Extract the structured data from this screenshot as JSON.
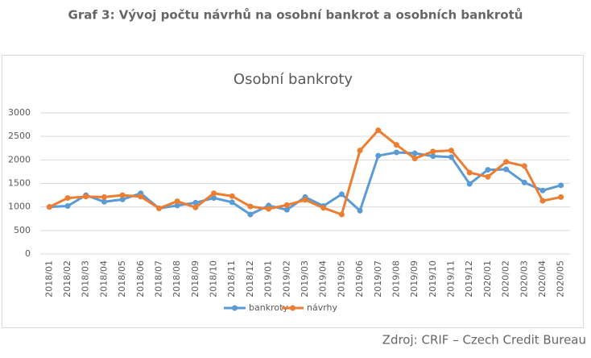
{
  "header": {
    "title": "Graf 3: Vývoj počtu návrhů na osobní bankrot a osobních bankrotů"
  },
  "chart_data": {
    "type": "line",
    "title": "Osobní bankroty",
    "categories": [
      "2018/01",
      "2018/02",
      "2018/03",
      "2018/04",
      "2018/05",
      "2018/06",
      "2018/07",
      "2018/08",
      "2018/09",
      "2018/10",
      "2018/11",
      "2018/12",
      "2019/01",
      "2019/02",
      "2019/03",
      "2019/04",
      "2019/05",
      "2019/06",
      "2019/07",
      "2019/08",
      "2019/09",
      "2019/10",
      "2019/11",
      "2019/12",
      "2020/01",
      "2020/02",
      "2020/03",
      "2020/04",
      "2020/05"
    ],
    "series": [
      {
        "name": "bankroty",
        "color": "#5b9bd5",
        "values": [
          1000,
          1020,
          1250,
          1110,
          1160,
          1290,
          970,
          1030,
          1090,
          1190,
          1100,
          840,
          1030,
          940,
          1210,
          1020,
          1270,
          920,
          2090,
          2160,
          2140,
          2080,
          2060,
          1490,
          1790,
          1800,
          1520,
          1350,
          1460
        ]
      },
      {
        "name": "návrhy",
        "color": "#ed7d31",
        "values": [
          1000,
          1190,
          1220,
          1210,
          1250,
          1220,
          970,
          1120,
          990,
          1290,
          1230,
          1010,
          960,
          1040,
          1150,
          980,
          840,
          2200,
          2630,
          2320,
          2030,
          2180,
          2200,
          1730,
          1640,
          1960,
          1870,
          1130,
          1210
        ]
      }
    ],
    "ylim": [
      0,
      3000
    ],
    "yticks": [
      0,
      500,
      1000,
      1500,
      2000,
      2500,
      3000
    ],
    "grid": true
  },
  "source": "Zdroj: CRIF – Czech Credit Bureau"
}
